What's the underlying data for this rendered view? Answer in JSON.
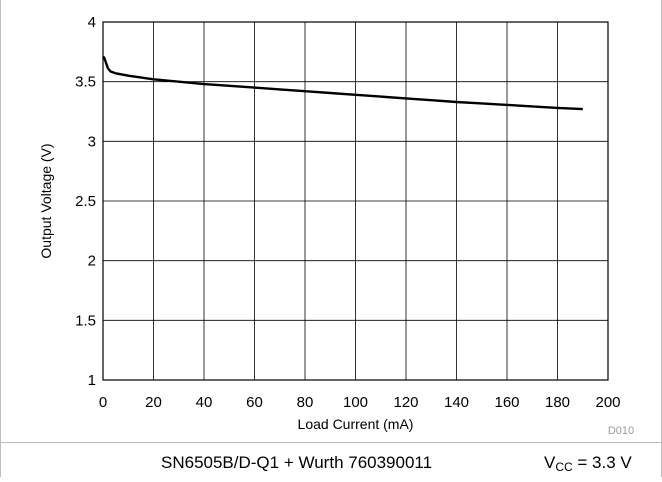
{
  "chart_data": {
    "type": "line",
    "xlabel": "Load Current (mA)",
    "ylabel": "Output Voltage (V)",
    "xlim": [
      0,
      200
    ],
    "ylim": [
      1,
      4
    ],
    "xticks": [
      "0",
      "20",
      "40",
      "60",
      "80",
      "100",
      "120",
      "140",
      "160",
      "180",
      "200"
    ],
    "yticks": [
      "1",
      "1.5",
      "2",
      "2.5",
      "3",
      "3.5",
      "4"
    ],
    "grid": true,
    "figure_id": "D010",
    "series": [
      {
        "x": [
          0,
          0.5,
          1,
          2,
          3,
          5,
          10,
          20,
          30,
          40,
          50,
          60,
          70,
          80,
          90,
          100,
          110,
          120,
          130,
          140,
          150,
          160,
          170,
          180,
          190
        ],
        "y": [
          3.71,
          3.7,
          3.67,
          3.61,
          3.585,
          3.57,
          3.55,
          3.52,
          3.5,
          3.48,
          3.465,
          3.45,
          3.435,
          3.42,
          3.405,
          3.39,
          3.375,
          3.36,
          3.345,
          3.33,
          3.318,
          3.305,
          3.293,
          3.28,
          3.27
        ],
        "color": "#000000"
      }
    ]
  },
  "caption": {
    "device": "SN6505B/D-Q1 + Wurth 760390011",
    "condition_prefix": "V",
    "condition_sub": "CC",
    "condition_suffix": " = 3.3 V"
  }
}
